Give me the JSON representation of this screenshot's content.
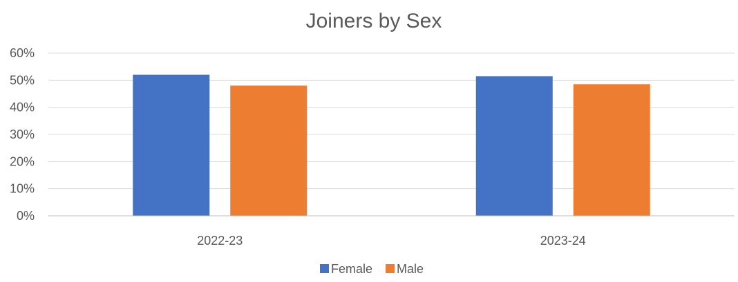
{
  "chart_data": {
    "type": "bar",
    "title": "Joiners by Sex",
    "categories": [
      "2022-23",
      "2023-24"
    ],
    "series": [
      {
        "name": "Female",
        "color": "#4472C4",
        "values": [
          52,
          51.5
        ]
      },
      {
        "name": "Male",
        "color": "#ED7D31",
        "values": [
          48,
          48.5
        ]
      }
    ],
    "ylim": [
      0,
      60
    ],
    "yticks": [
      0,
      10,
      20,
      30,
      40,
      50,
      60
    ],
    "ytick_labels": [
      "0%",
      "10%",
      "20%",
      "30%",
      "40%",
      "50%",
      "60%"
    ],
    "grid": true,
    "legend": "bottom-center",
    "grid_color": "#D9D9D9",
    "axis_color": "#BFBFBF"
  }
}
